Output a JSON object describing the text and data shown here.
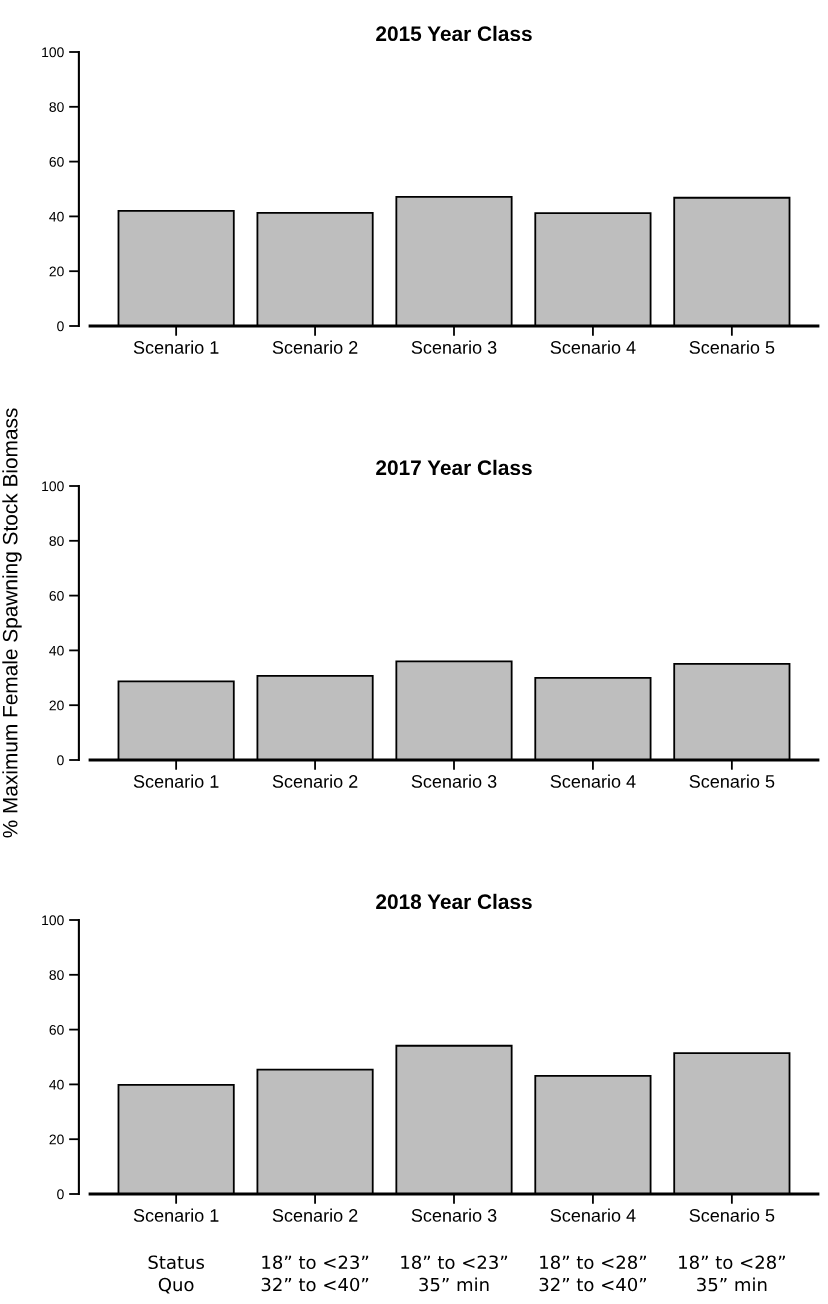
{
  "chart_data": [
    {
      "type": "bar",
      "title": "2015 Year Class",
      "categories": [
        "Scenario 1",
        "Scenario 2",
        "Scenario 3",
        "Scenario 4",
        "Scenario 5"
      ],
      "values": [
        42.0,
        41.3,
        47.1,
        41.2,
        46.8
      ],
      "color": "#bebebe",
      "ylim": [
        0,
        100
      ],
      "yticks": [
        0,
        20,
        40,
        60,
        80,
        100
      ],
      "grid": false,
      "legend": false
    },
    {
      "type": "bar",
      "title": "2017 Year Class",
      "ylabel": "% Maximum Female Spawning Stock Biomass",
      "categories": [
        "Scenario 1",
        "Scenario 2",
        "Scenario 3",
        "Scenario 4",
        "Scenario 5"
      ],
      "values": [
        28.7,
        30.7,
        36.0,
        30.0,
        35.1
      ],
      "color": "#bebebe",
      "ylim": [
        0,
        100
      ],
      "yticks": [
        0,
        20,
        40,
        60,
        80,
        100
      ],
      "grid": false,
      "legend": false
    },
    {
      "type": "bar",
      "title": "2018 Year Class",
      "categories": [
        "Scenario 1",
        "Scenario 2",
        "Scenario 3",
        "Scenario 4",
        "Scenario 5"
      ],
      "values": [
        39.8,
        45.4,
        54.1,
        43.1,
        51.4
      ],
      "color": "#bebebe",
      "ylim": [
        0,
        100
      ],
      "yticks": [
        0,
        20,
        40,
        60,
        80,
        100
      ],
      "grid": false,
      "legend": false,
      "annotations": [
        "Status\nQuo",
        "18” to <23”\n32” to <40”",
        "18” to <23”\n35” min",
        "18” to <28”\n32” to <40”",
        "18” to <28”\n35” min"
      ]
    }
  ]
}
